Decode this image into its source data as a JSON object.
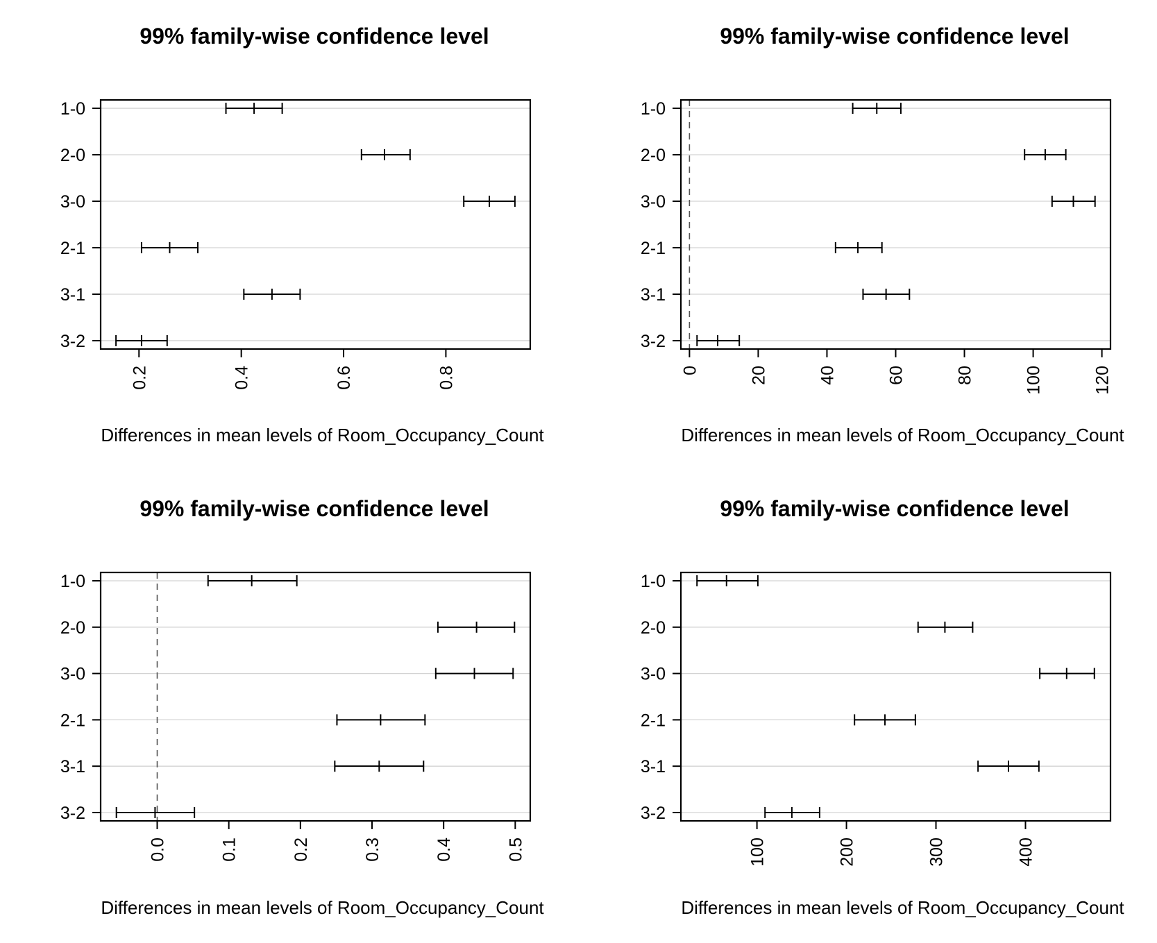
{
  "chart_data": [
    {
      "type": "errorbar",
      "title": "99% family-wise confidence level",
      "xlabel": "Differences in mean levels of Room_Occupancy_Count",
      "categories": [
        "1-0",
        "2-0",
        "3-0",
        "2-1",
        "3-1",
        "3-2"
      ],
      "xticks": [
        0.2,
        0.4,
        0.6,
        0.8
      ],
      "xlim": [
        0.125,
        0.965
      ],
      "zero_line": false,
      "grid": true,
      "intervals": [
        {
          "label": "1-0",
          "lwr": 0.37,
          "diff": 0.425,
          "upr": 0.48
        },
        {
          "label": "2-0",
          "lwr": 0.635,
          "diff": 0.68,
          "upr": 0.73
        },
        {
          "label": "3-0",
          "lwr": 0.835,
          "diff": 0.885,
          "upr": 0.935
        },
        {
          "label": "2-1",
          "lwr": 0.205,
          "diff": 0.26,
          "upr": 0.315
        },
        {
          "label": "3-1",
          "lwr": 0.405,
          "diff": 0.46,
          "upr": 0.515
        },
        {
          "label": "3-2",
          "lwr": 0.155,
          "diff": 0.205,
          "upr": 0.255
        }
      ]
    },
    {
      "type": "errorbar",
      "title": "99% family-wise confidence level",
      "xlabel": "Differences in mean levels of Room_Occupancy_Count",
      "categories": [
        "1-0",
        "2-0",
        "3-0",
        "2-1",
        "3-1",
        "3-2"
      ],
      "xticks": [
        0,
        20,
        40,
        60,
        80,
        100,
        120
      ],
      "xlim": [
        -2.5,
        122.5
      ],
      "zero_line": true,
      "grid": true,
      "intervals": [
        {
          "label": "1-0",
          "lwr": 47.5,
          "diff": 54.5,
          "upr": 61.5
        },
        {
          "label": "2-0",
          "lwr": 97.5,
          "diff": 103.5,
          "upr": 109.5
        },
        {
          "label": "3-0",
          "lwr": 105.5,
          "diff": 111.7,
          "upr": 118
        },
        {
          "label": "2-1",
          "lwr": 42.5,
          "diff": 49,
          "upr": 56
        },
        {
          "label": "3-1",
          "lwr": 50.5,
          "diff": 57.2,
          "upr": 64
        },
        {
          "label": "3-2",
          "lwr": 2.2,
          "diff": 8.2,
          "upr": 14.5
        }
      ]
    },
    {
      "type": "errorbar",
      "title": "99% family-wise confidence level",
      "xlabel": "Differences in mean levels of Room_Occupancy_Count",
      "categories": [
        "1-0",
        "2-0",
        "3-0",
        "2-1",
        "3-1",
        "3-2"
      ],
      "xticks": [
        0.0,
        0.1,
        0.2,
        0.3,
        0.4,
        0.5
      ],
      "xtick_labels": [
        "0.0",
        "0.1",
        "0.2",
        "0.3",
        "0.4",
        "0.5"
      ],
      "xlim": [
        -0.079,
        0.521
      ],
      "zero_line": true,
      "grid": true,
      "intervals": [
        {
          "label": "1-0",
          "lwr": 0.071,
          "diff": 0.132,
          "upr": 0.195
        },
        {
          "label": "2-0",
          "lwr": 0.392,
          "diff": 0.446,
          "upr": 0.499
        },
        {
          "label": "3-0",
          "lwr": 0.389,
          "diff": 0.443,
          "upr": 0.497
        },
        {
          "label": "2-1",
          "lwr": 0.251,
          "diff": 0.312,
          "upr": 0.374
        },
        {
          "label": "3-1",
          "lwr": 0.248,
          "diff": 0.31,
          "upr": 0.372
        },
        {
          "label": "3-2",
          "lwr": -0.057,
          "diff": -0.003,
          "upr": 0.052
        }
      ]
    },
    {
      "type": "errorbar",
      "title": "99% family-wise confidence level",
      "xlabel": "Differences in mean levels of Room_Occupancy_Count",
      "categories": [
        "1-0",
        "2-0",
        "3-0",
        "2-1",
        "3-1",
        "3-2"
      ],
      "xticks": [
        100,
        200,
        300,
        400
      ],
      "xlim": [
        15,
        495
      ],
      "zero_line": false,
      "grid": true,
      "intervals": [
        {
          "label": "1-0",
          "lwr": 33,
          "diff": 66,
          "upr": 101
        },
        {
          "label": "2-0",
          "lwr": 280,
          "diff": 310,
          "upr": 341
        },
        {
          "label": "3-0",
          "lwr": 416,
          "diff": 446,
          "upr": 477
        },
        {
          "label": "2-1",
          "lwr": 209,
          "diff": 243,
          "upr": 277
        },
        {
          "label": "3-1",
          "lwr": 347,
          "diff": 381,
          "upr": 415
        },
        {
          "label": "3-2",
          "lwr": 109,
          "diff": 139,
          "upr": 170
        }
      ]
    }
  ]
}
